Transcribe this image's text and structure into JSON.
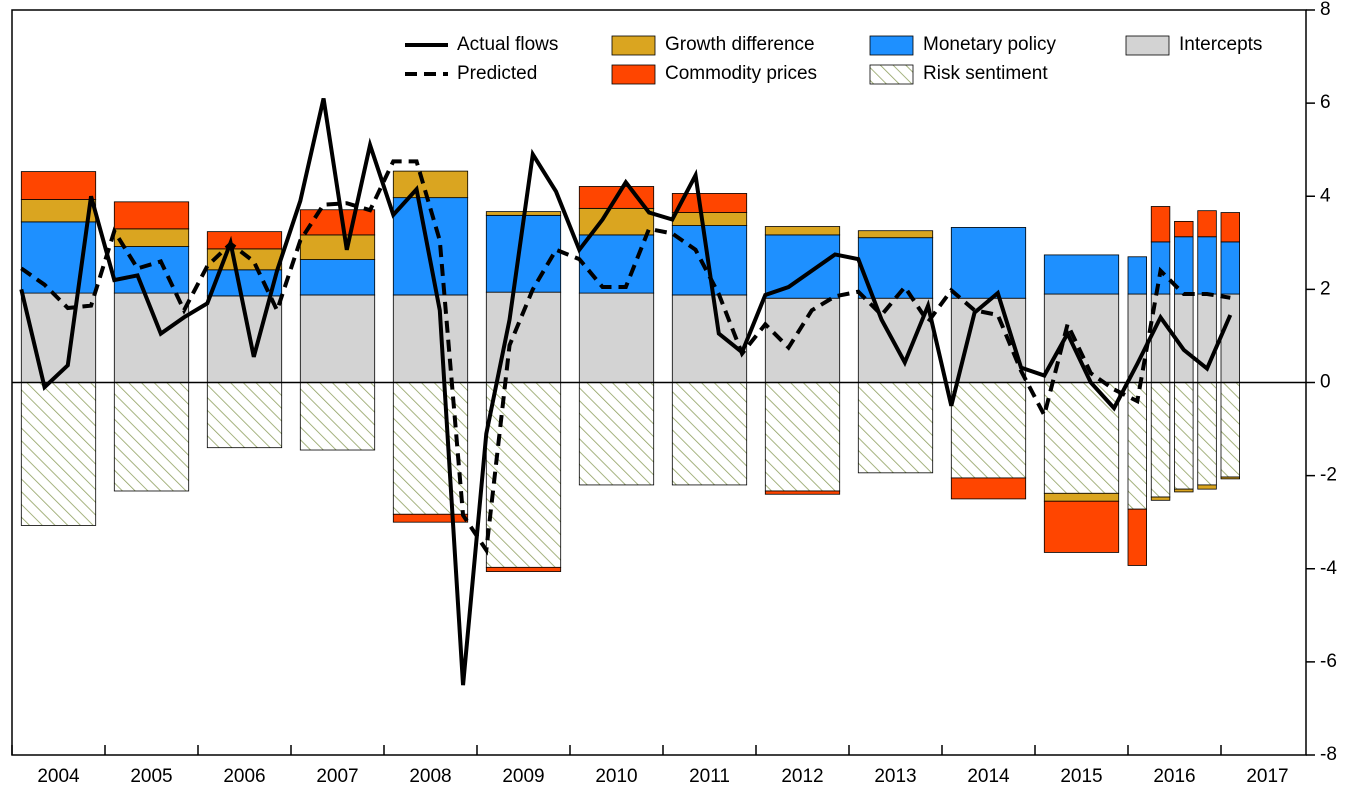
{
  "chart_data": {
    "type": "combo",
    "xlim": [
      2004,
      2017.914
    ],
    "ylim": [
      -8,
      8
    ],
    "yticks": [
      -8,
      -6,
      -4,
      -2,
      0,
      2,
      4,
      6,
      8
    ],
    "xticks": [
      2004,
      2005,
      2006,
      2007,
      2008,
      2009,
      2010,
      2011,
      2012,
      2013,
      2014,
      2015,
      2016,
      2017
    ],
    "bars": {
      "x": [
        2004.5,
        2005.5,
        2006.5,
        2007.5,
        2008.5,
        2009.5,
        2010.5,
        2011.5,
        2012.5,
        2013.5,
        2014.5,
        2015.5,
        2016.1,
        2016.35,
        2016.6,
        2016.85,
        2017.1
      ],
      "series": [
        {
          "name": "Risk sentiment",
          "color": "#8fa060",
          "hatch": true,
          "values": [
            -3.07,
            -2.33,
            -1.4,
            -1.45,
            -2.83,
            -3.97,
            -2.2,
            -2.2,
            -2.33,
            -1.94,
            -2.05,
            -2.38,
            -2.72,
            -2.46,
            -2.29,
            -2.2,
            -2.03
          ]
        },
        {
          "name": "Intercepts",
          "color": "#d3d3d3",
          "values": [
            1.92,
            1.92,
            1.86,
            1.88,
            1.88,
            1.94,
            1.92,
            1.88,
            1.81,
            1.81,
            1.81,
            1.9,
            1.9,
            1.9,
            1.9,
            1.9,
            1.9
          ]
        },
        {
          "name": "Monetary policy",
          "color": "#1e90ff",
          "values": [
            1.53,
            1.0,
            0.56,
            0.76,
            2.09,
            1.65,
            1.25,
            1.49,
            1.36,
            1.3,
            1.52,
            0.84,
            0.8,
            1.12,
            1.23,
            1.23,
            1.12
          ]
        },
        {
          "name": "Growth difference",
          "color": "#daa520",
          "values": [
            0.48,
            0.38,
            0.45,
            0.53,
            0.57,
            0.08,
            0.57,
            0.28,
            0.18,
            0.15,
            0,
            -0.17,
            0,
            -0.07,
            -0.06,
            -0.09,
            -0.04
          ]
        },
        {
          "name": "Commodity prices",
          "color": "#ff4500",
          "values": [
            0.6,
            0.58,
            0.37,
            0.54,
            -0.17,
            -0.09,
            0.47,
            0.41,
            -0.07,
            0,
            -0.45,
            -1.1,
            -1.21,
            0.76,
            0.33,
            0.56,
            0.63
          ]
        }
      ]
    },
    "lines": {
      "x": [
        2004.1,
        2004.35,
        2004.6,
        2004.85,
        2005.1,
        2005.35,
        2005.6,
        2005.85,
        2006.1,
        2006.35,
        2006.6,
        2006.85,
        2007.1,
        2007.35,
        2007.6,
        2007.85,
        2008.1,
        2008.35,
        2008.6,
        2008.85,
        2009.1,
        2009.35,
        2009.6,
        2009.85,
        2010.1,
        2010.35,
        2010.6,
        2010.85,
        2011.1,
        2011.35,
        2011.6,
        2011.85,
        2012.1,
        2012.35,
        2012.6,
        2012.85,
        2013.1,
        2013.35,
        2013.6,
        2013.85,
        2014.1,
        2014.35,
        2014.6,
        2014.85,
        2015.1,
        2015.35,
        2015.6,
        2015.85,
        2016.1,
        2016.35,
        2016.6,
        2016.85,
        2017.1
      ],
      "series": [
        {
          "name": "Actual flows",
          "color": "#000000",
          "dashed": false,
          "values": [
            2.0,
            -0.1,
            0.37,
            4.0,
            2.2,
            2.3,
            1.05,
            1.4,
            1.7,
            3.0,
            0.55,
            2.4,
            3.9,
            6.1,
            2.85,
            5.1,
            3.6,
            4.15,
            1.55,
            -6.5,
            -1.1,
            1.35,
            4.9,
            4.1,
            2.85,
            3.5,
            4.3,
            3.65,
            3.5,
            4.45,
            1.05,
            0.65,
            1.88,
            2.05,
            2.4,
            2.75,
            2.65,
            1.35,
            0.43,
            1.65,
            -0.5,
            1.5,
            1.92,
            0.32,
            0.15,
            1.05,
            0,
            -0.55,
            0.4,
            1.4,
            0.7,
            0.3,
            1.45
          ]
        },
        {
          "name": "Predicted",
          "color": "#000000",
          "dashed": true,
          "values": [
            2.45,
            2.1,
            1.6,
            1.65,
            3.25,
            2.45,
            2.6,
            1.55,
            2.5,
            2.98,
            2.6,
            1.55,
            3.05,
            3.82,
            3.85,
            3.7,
            4.75,
            4.75,
            3.05,
            -2.85,
            -3.6,
            0.8,
            2.0,
            2.85,
            2.65,
            2.05,
            2.05,
            3.3,
            3.2,
            2.85,
            1.9,
            0.62,
            1.25,
            0.75,
            1.55,
            1.85,
            1.95,
            1.45,
            2.05,
            1.3,
            1.98,
            1.55,
            1.45,
            0.25,
            -0.7,
            1.25,
            0.2,
            -0.15,
            -0.4,
            2.4,
            1.9,
            1.9,
            1.82
          ]
        }
      ]
    }
  }
}
